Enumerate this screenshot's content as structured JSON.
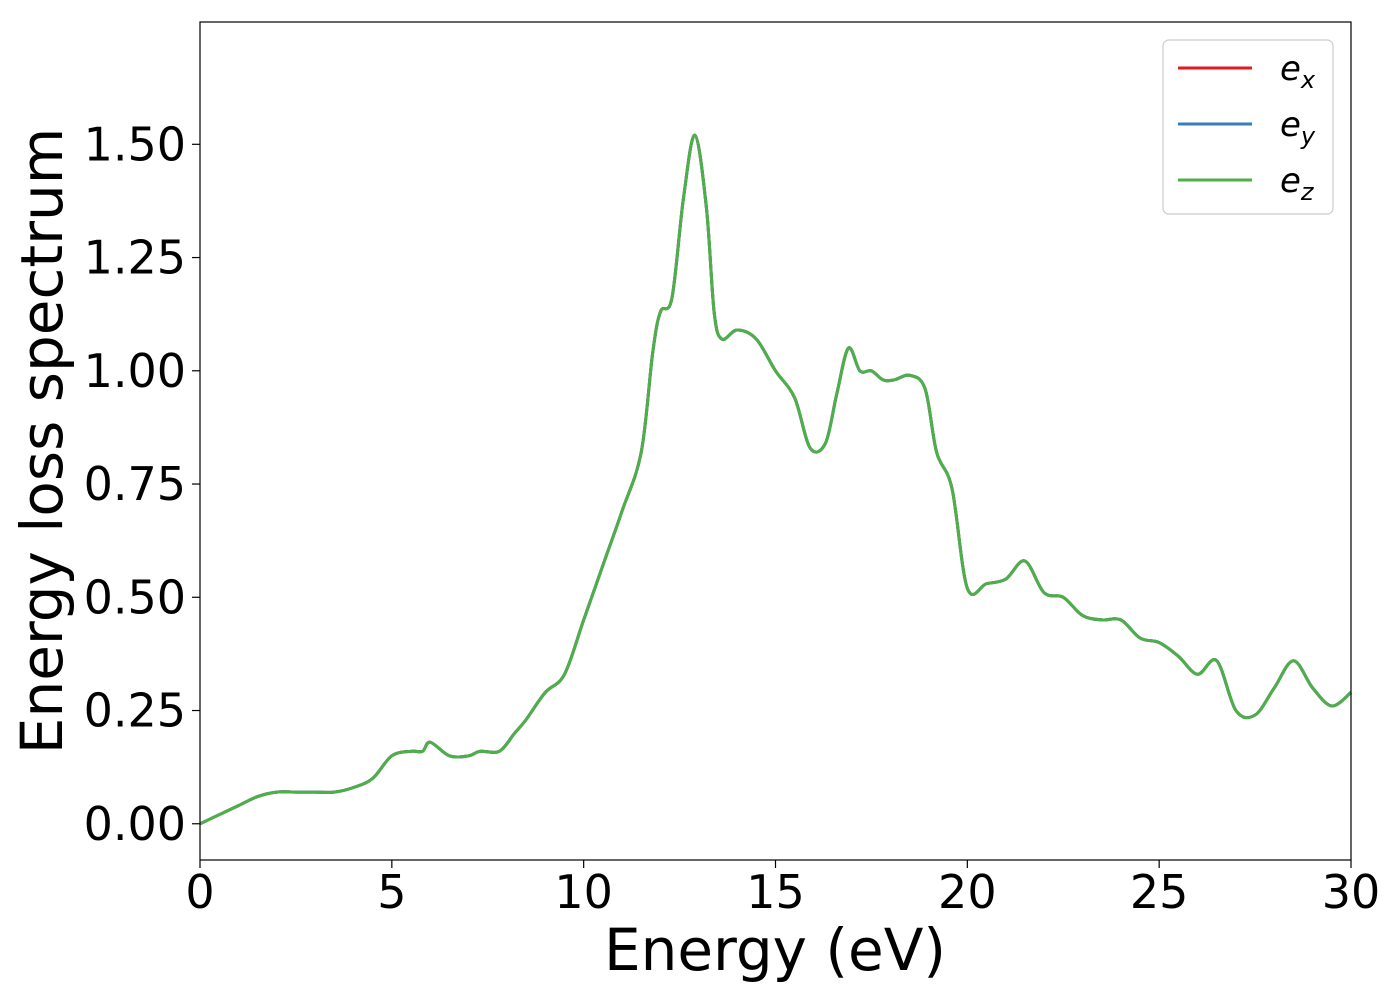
{
  "chart_data": {
    "type": "line",
    "title": "",
    "xlabel": "Energy (eV)",
    "ylabel": "Energy loss spectrum",
    "xlim": [
      0,
      30
    ],
    "ylim": [
      -0.08,
      1.77
    ],
    "xticks": [
      "0",
      "5",
      "10",
      "15",
      "20",
      "25",
      "30"
    ],
    "yticks": [
      "0.00",
      "0.25",
      "0.50",
      "0.75",
      "1.00",
      "1.25",
      "1.50"
    ],
    "grid": false,
    "legend_position": "top-right",
    "x": [
      0,
      0.5,
      1,
      1.5,
      2,
      2.5,
      3,
      3.5,
      4,
      4.5,
      5,
      5.5,
      5.8,
      6,
      6.5,
      7,
      7.3,
      7.8,
      8.2,
      8.5,
      9,
      9.5,
      10,
      10.5,
      11,
      11.5,
      11.8,
      12,
      12.3,
      12.6,
      12.9,
      13.2,
      13.4,
      13.6,
      14,
      14.5,
      15,
      15.5,
      15.9,
      16.3,
      16.6,
      16.9,
      17.2,
      17.5,
      17.8,
      18.1,
      18.5,
      18.9,
      19.2,
      19.6,
      20,
      20.5,
      21,
      21.5,
      22,
      22.5,
      23,
      23.5,
      24,
      24.5,
      25,
      25.5,
      26,
      26.5,
      27,
      27.5,
      28,
      28.5,
      29,
      29.5,
      30
    ],
    "series": [
      {
        "name": "x",
        "color": "#e41a1c",
        "values": [
          0.0,
          0.02,
          0.04,
          0.06,
          0.07,
          0.07,
          0.07,
          0.07,
          0.08,
          0.1,
          0.15,
          0.16,
          0.16,
          0.18,
          0.15,
          0.15,
          0.16,
          0.16,
          0.2,
          0.23,
          0.29,
          0.33,
          0.45,
          0.57,
          0.69,
          0.82,
          1.04,
          1.13,
          1.16,
          1.38,
          1.52,
          1.36,
          1.13,
          1.07,
          1.09,
          1.07,
          1.0,
          0.94,
          0.83,
          0.84,
          0.95,
          1.05,
          1.0,
          1.0,
          0.98,
          0.98,
          0.99,
          0.96,
          0.82,
          0.74,
          0.52,
          0.53,
          0.54,
          0.58,
          0.51,
          0.5,
          0.46,
          0.45,
          0.45,
          0.41,
          0.4,
          0.37,
          0.33,
          0.36,
          0.25,
          0.24,
          0.3,
          0.36,
          0.3,
          0.26,
          0.29
        ]
      },
      {
        "name": "y",
        "color": "#377eb8",
        "values": [
          0.0,
          0.02,
          0.04,
          0.06,
          0.07,
          0.07,
          0.07,
          0.07,
          0.08,
          0.1,
          0.15,
          0.16,
          0.16,
          0.18,
          0.15,
          0.15,
          0.16,
          0.16,
          0.2,
          0.23,
          0.29,
          0.33,
          0.45,
          0.57,
          0.69,
          0.82,
          1.04,
          1.13,
          1.16,
          1.38,
          1.52,
          1.36,
          1.13,
          1.07,
          1.09,
          1.07,
          1.0,
          0.94,
          0.83,
          0.84,
          0.95,
          1.05,
          1.0,
          1.0,
          0.98,
          0.98,
          0.99,
          0.96,
          0.82,
          0.74,
          0.52,
          0.53,
          0.54,
          0.58,
          0.51,
          0.5,
          0.46,
          0.45,
          0.45,
          0.41,
          0.4,
          0.37,
          0.33,
          0.36,
          0.25,
          0.24,
          0.3,
          0.36,
          0.3,
          0.26,
          0.29
        ]
      },
      {
        "name": "z",
        "color": "#4daf4a",
        "values": [
          0.0,
          0.02,
          0.04,
          0.06,
          0.07,
          0.07,
          0.07,
          0.07,
          0.08,
          0.1,
          0.15,
          0.16,
          0.16,
          0.18,
          0.15,
          0.15,
          0.16,
          0.16,
          0.2,
          0.23,
          0.29,
          0.33,
          0.45,
          0.57,
          0.69,
          0.82,
          1.04,
          1.13,
          1.16,
          1.38,
          1.52,
          1.36,
          1.13,
          1.07,
          1.09,
          1.07,
          1.0,
          0.94,
          0.83,
          0.84,
          0.95,
          1.05,
          1.0,
          1.0,
          0.98,
          0.98,
          0.99,
          0.96,
          0.82,
          0.74,
          0.52,
          0.53,
          0.54,
          0.58,
          0.51,
          0.5,
          0.46,
          0.45,
          0.45,
          0.41,
          0.4,
          0.37,
          0.33,
          0.36,
          0.25,
          0.24,
          0.3,
          0.36,
          0.3,
          0.26,
          0.29
        ]
      }
    ],
    "legend": [
      {
        "base": "e",
        "sub": "x",
        "color": "#e41a1c"
      },
      {
        "base": "e",
        "sub": "y",
        "color": "#377eb8"
      },
      {
        "base": "e",
        "sub": "z",
        "color": "#4daf4a"
      }
    ]
  }
}
